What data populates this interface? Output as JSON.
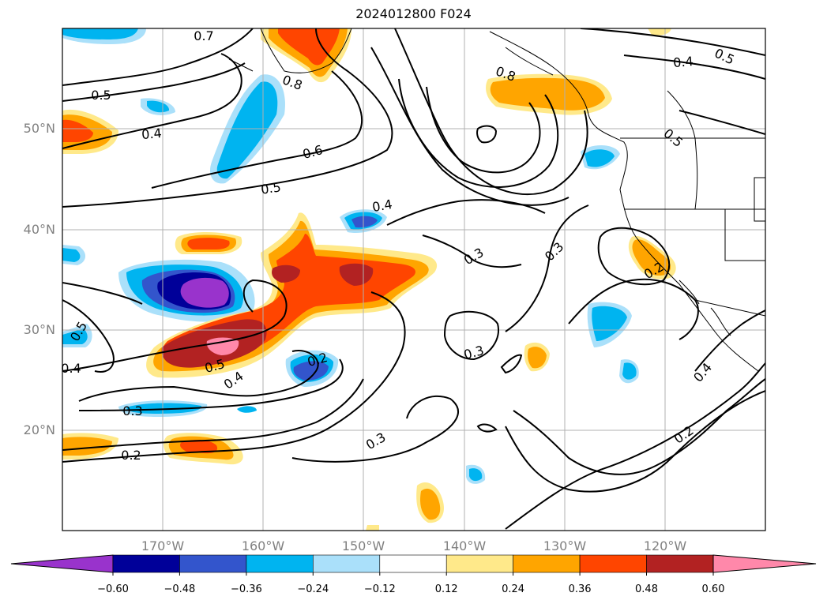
{
  "title": "2024012800 F024",
  "latitude_labels": [
    "20°N",
    "30°N",
    "40°N",
    "50°N"
  ],
  "longitude_labels": [
    "170°W",
    "160°W",
    "150°W",
    "140°W",
    "130°W",
    "120°W"
  ],
  "colorbar": {
    "tick_labels": [
      "−0.60",
      "−0.48",
      "−0.36",
      "−0.24",
      "−0.12",
      "0.12",
      "0.24",
      "0.36",
      "0.48",
      "0.60"
    ],
    "colors": [
      "#9933cc",
      "#000099",
      "#3355cc",
      "#00b4f0",
      "#aae0fa",
      "#ffffff",
      "#ffe98a",
      "#ffa500",
      "#ff4500",
      "#b22222",
      "#ff88aa"
    ]
  },
  "contour_labels": [
    {
      "text": "0.7"
    },
    {
      "text": "0.8"
    },
    {
      "text": "0.5"
    },
    {
      "text": "0.4"
    },
    {
      "text": "0.6"
    },
    {
      "text": "0.5"
    },
    {
      "text": "0.4"
    },
    {
      "text": "0.8"
    },
    {
      "text": "0.4"
    },
    {
      "text": "0.5"
    },
    {
      "text": "0.5"
    },
    {
      "text": "0.3"
    },
    {
      "text": "0.3"
    },
    {
      "text": "0.2"
    },
    {
      "text": "0.5"
    },
    {
      "text": "0.4"
    },
    {
      "text": "0.5"
    },
    {
      "text": "0.2"
    },
    {
      "text": "0.4"
    },
    {
      "text": "0.3"
    },
    {
      "text": "0.3"
    },
    {
      "text": "0.3"
    },
    {
      "text": "0.2"
    },
    {
      "text": "0.4"
    },
    {
      "text": "0.2"
    }
  ]
}
